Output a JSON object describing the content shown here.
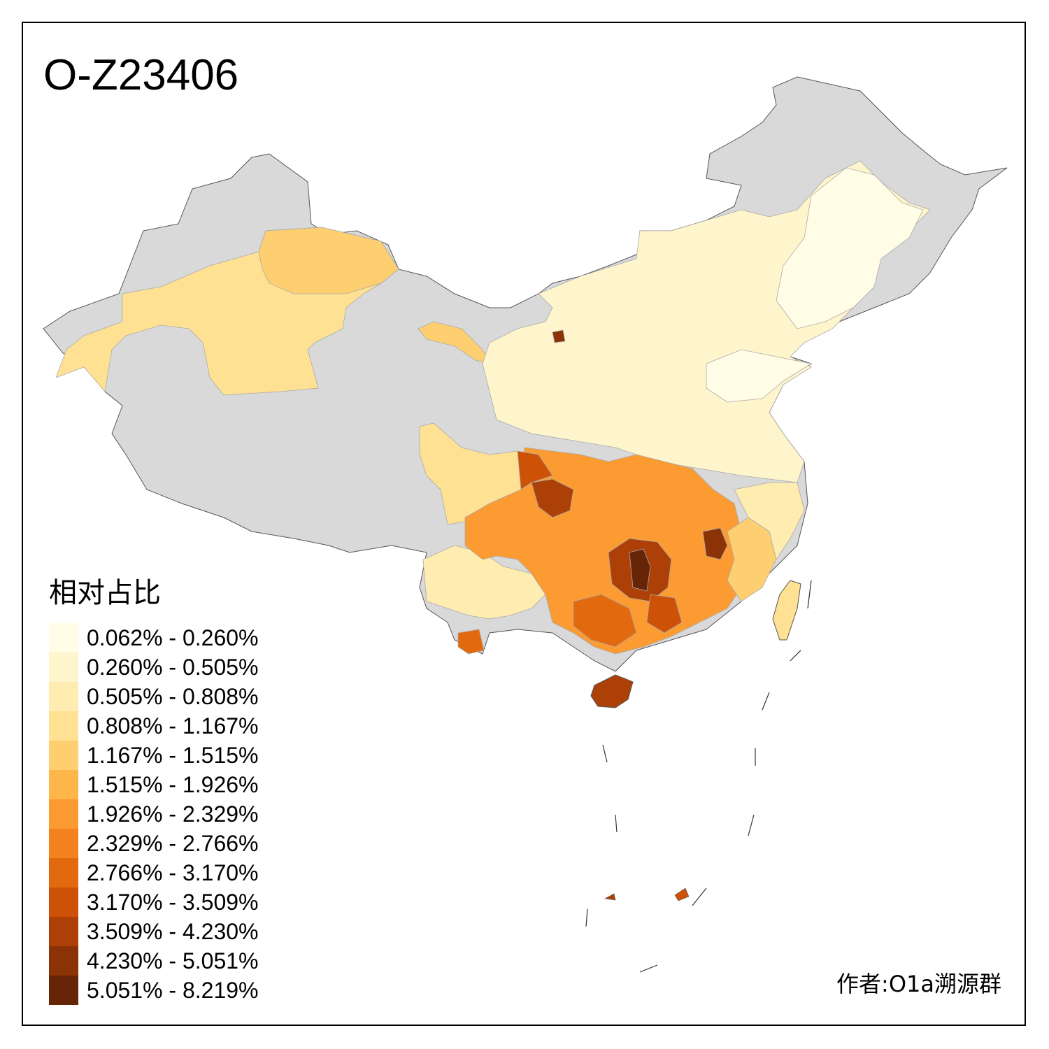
{
  "title": "O-Z23406",
  "legend": {
    "title": "相对占比",
    "items": [
      {
        "label": "0.062% - 0.260%",
        "color": "#fffde5"
      },
      {
        "label": "0.260% - 0.505%",
        "color": "#fff5cc"
      },
      {
        "label": "0.505% - 0.808%",
        "color": "#ffecb0"
      },
      {
        "label": "0.808% - 1.167%",
        "color": "#fee193"
      },
      {
        "label": "1.167% - 1.515%",
        "color": "#fecf70"
      },
      {
        "label": "1.515% - 1.926%",
        "color": "#feb54a"
      },
      {
        "label": "1.926% - 2.329%",
        "color": "#fb9b32"
      },
      {
        "label": "2.329% - 2.766%",
        "color": "#f3821f"
      },
      {
        "label": "2.766% - 3.170%",
        "color": "#e3690f"
      },
      {
        "label": "3.170% - 3.509%",
        "color": "#cd5207"
      },
      {
        "label": "3.509% - 4.230%",
        "color": "#ad4006"
      },
      {
        "label": "4.230% - 5.051%",
        "color": "#8b3206"
      },
      {
        "label": "5.051% - 8.219%",
        "color": "#662506"
      }
    ]
  },
  "no_data_color": "#d9d9d9",
  "author": "作者:O1a溯源群"
}
